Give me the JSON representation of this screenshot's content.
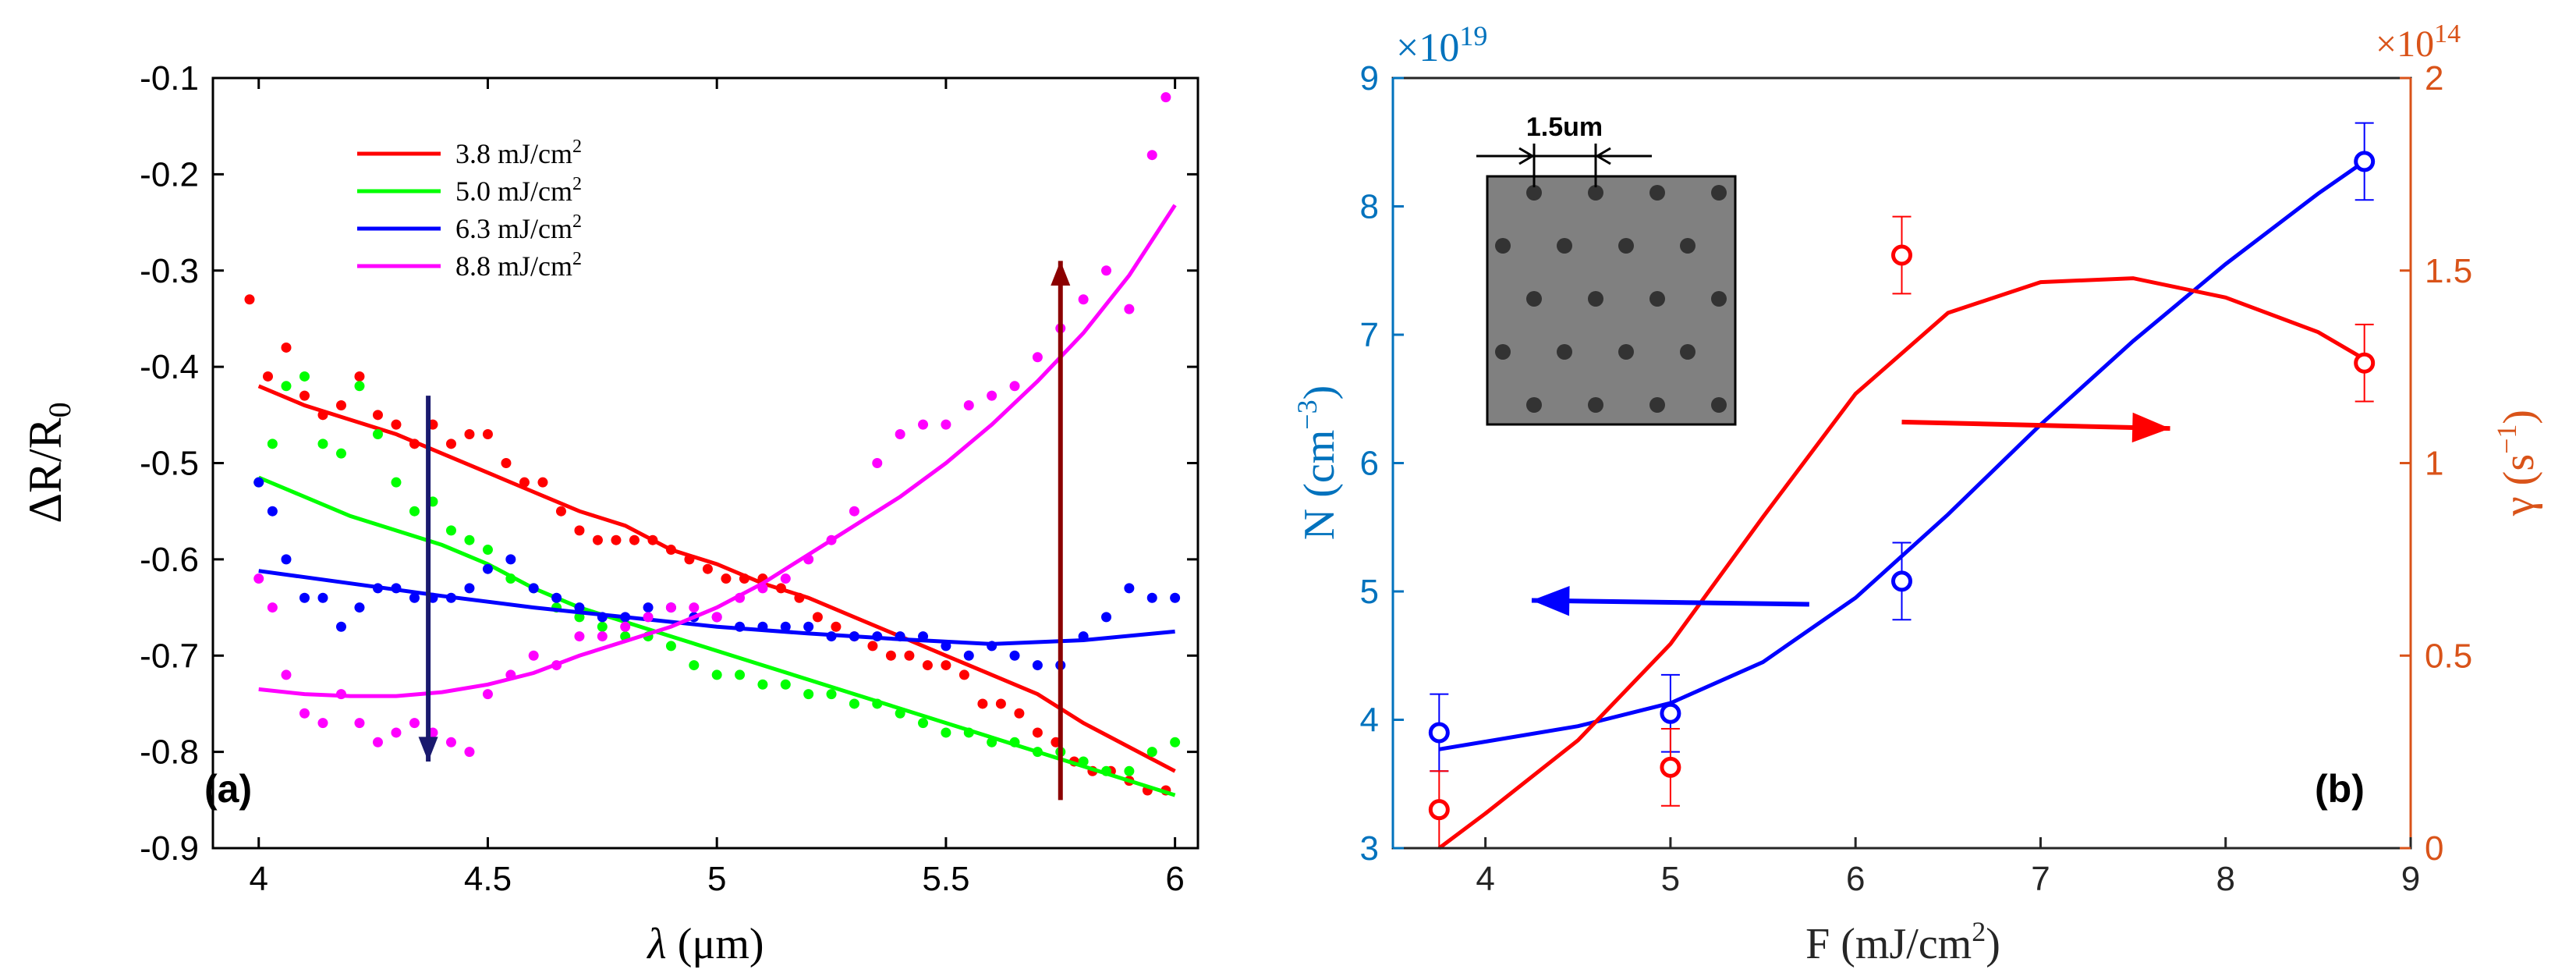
{
  "chart_data": [
    {
      "panel_label": "(a)",
      "type": "line",
      "xlabel_symbol": "λ",
      "xlabel_unit": "(μm)",
      "ylabel_base": "ΔR/R",
      "ylabel_sub": "0",
      "xlim": [
        3.9,
        6.05
      ],
      "ylim": [
        -0.9,
        -0.1
      ],
      "xticks": [
        4,
        4.5,
        5,
        5.5,
        6
      ],
      "xtick_labels": [
        "4",
        "4.5",
        "5",
        "5.5",
        "6"
      ],
      "yticks": [
        -0.9,
        -0.8,
        -0.7,
        -0.6,
        -0.5,
        -0.4,
        -0.3,
        -0.2,
        -0.1
      ],
      "ytick_labels": [
        "-0.9",
        "-0.8",
        "-0.7",
        "-0.6",
        "-0.5",
        "-0.4",
        "-0.3",
        "-0.2",
        "-0.1"
      ],
      "legend_position": "top-left",
      "series": [
        {
          "name": "3.8 mJ/cm",
          "name_sup": "2",
          "color": "#ff0000",
          "fit_x": [
            4.0,
            4.1,
            4.2,
            4.3,
            4.4,
            4.5,
            4.6,
            4.7,
            4.8,
            4.9,
            5.0,
            5.1,
            5.2,
            5.3,
            5.4,
            5.5,
            5.6,
            5.7,
            5.8,
            5.9,
            6.0
          ],
          "fit_y": [
            -0.42,
            -0.44,
            -0.455,
            -0.47,
            -0.49,
            -0.51,
            -0.53,
            -0.55,
            -0.565,
            -0.59,
            -0.605,
            -0.625,
            -0.64,
            -0.66,
            -0.68,
            -0.7,
            -0.72,
            -0.74,
            -0.77,
            -0.795,
            -0.82
          ],
          "points_x": [
            3.98,
            4.02,
            4.06,
            4.1,
            4.14,
            4.18,
            4.22,
            4.26,
            4.3,
            4.34,
            4.38,
            4.42,
            4.46,
            4.5,
            4.54,
            4.58,
            4.62,
            4.66,
            4.7,
            4.74,
            4.78,
            4.82,
            4.86,
            4.9,
            4.94,
            4.98,
            5.02,
            5.06,
            5.1,
            5.14,
            5.18,
            5.22,
            5.26,
            5.3,
            5.34,
            5.38,
            5.42,
            5.46,
            5.5,
            5.54,
            5.58,
            5.62,
            5.66,
            5.7,
            5.74,
            5.78,
            5.82,
            5.86,
            5.9,
            5.94,
            5.98
          ],
          "points_y": [
            -0.33,
            -0.41,
            -0.38,
            -0.43,
            -0.45,
            -0.44,
            -0.41,
            -0.45,
            -0.46,
            -0.48,
            -0.46,
            -0.48,
            -0.47,
            -0.47,
            -0.5,
            -0.52,
            -0.52,
            -0.55,
            -0.57,
            -0.58,
            -0.58,
            -0.58,
            -0.58,
            -0.59,
            -0.6,
            -0.61,
            -0.62,
            -0.62,
            -0.62,
            -0.63,
            -0.64,
            -0.66,
            -0.67,
            -0.68,
            -0.69,
            -0.7,
            -0.7,
            -0.71,
            -0.71,
            -0.72,
            -0.75,
            -0.75,
            -0.76,
            -0.78,
            -0.79,
            -0.81,
            -0.82,
            -0.82,
            -0.83,
            -0.84,
            -0.84
          ]
        },
        {
          "name": "5.0 mJ/cm",
          "name_sup": "2",
          "color": "#00ff00",
          "fit_x": [
            4.0,
            4.1,
            4.2,
            4.3,
            4.4,
            4.5,
            4.6,
            4.7,
            4.8,
            4.9,
            5.0,
            5.1,
            5.2,
            5.3,
            5.4,
            5.5,
            5.6,
            5.7,
            5.8,
            5.9,
            6.0
          ],
          "fit_y": [
            -0.515,
            -0.535,
            -0.555,
            -0.57,
            -0.585,
            -0.605,
            -0.63,
            -0.65,
            -0.665,
            -0.68,
            -0.695,
            -0.71,
            -0.725,
            -0.74,
            -0.755,
            -0.77,
            -0.785,
            -0.8,
            -0.815,
            -0.83,
            -0.845
          ],
          "points_x": [
            4.0,
            4.03,
            4.06,
            4.1,
            4.14,
            4.18,
            4.22,
            4.26,
            4.3,
            4.34,
            4.38,
            4.42,
            4.46,
            4.5,
            4.55,
            4.6,
            4.65,
            4.7,
            4.75,
            4.8,
            4.85,
            4.9,
            4.95,
            5.0,
            5.05,
            5.1,
            5.15,
            5.2,
            5.25,
            5.3,
            5.35,
            5.4,
            5.45,
            5.5,
            5.55,
            5.6,
            5.65,
            5.7,
            5.75,
            5.8,
            5.85,
            5.9,
            5.95,
            6.0
          ],
          "points_y": [
            -0.52,
            -0.48,
            -0.42,
            -0.41,
            -0.48,
            -0.49,
            -0.42,
            -0.47,
            -0.52,
            -0.55,
            -0.54,
            -0.57,
            -0.58,
            -0.59,
            -0.62,
            -0.63,
            -0.65,
            -0.66,
            -0.67,
            -0.68,
            -0.68,
            -0.69,
            -0.71,
            -0.72,
            -0.72,
            -0.73,
            -0.73,
            -0.74,
            -0.74,
            -0.75,
            -0.75,
            -0.76,
            -0.77,
            -0.78,
            -0.78,
            -0.79,
            -0.79,
            -0.8,
            -0.8,
            -0.81,
            -0.82,
            -0.82,
            -0.8,
            -0.79
          ]
        },
        {
          "name": "6.3 mJ/cm",
          "name_sup": "2",
          "color": "#0000ff",
          "fit_x": [
            4.0,
            4.2,
            4.4,
            4.6,
            4.8,
            5.0,
            5.2,
            5.4,
            5.6,
            5.8,
            6.0
          ],
          "fit_y": [
            -0.612,
            -0.625,
            -0.638,
            -0.65,
            -0.66,
            -0.67,
            -0.677,
            -0.683,
            -0.688,
            -0.684,
            -0.675
          ],
          "points_x": [
            4.0,
            4.03,
            4.06,
            4.1,
            4.14,
            4.18,
            4.22,
            4.26,
            4.3,
            4.34,
            4.38,
            4.42,
            4.46,
            4.5,
            4.55,
            4.6,
            4.65,
            4.7,
            4.75,
            4.8,
            4.85,
            4.9,
            4.95,
            5.0,
            5.05,
            5.1,
            5.15,
            5.2,
            5.25,
            5.3,
            5.35,
            5.4,
            5.45,
            5.5,
            5.55,
            5.6,
            5.65,
            5.7,
            5.75,
            5.8,
            5.85,
            5.9,
            5.95,
            6.0
          ],
          "points_y": [
            -0.52,
            -0.55,
            -0.6,
            -0.64,
            -0.64,
            -0.67,
            -0.65,
            -0.63,
            -0.63,
            -0.64,
            -0.64,
            -0.64,
            -0.63,
            -0.61,
            -0.6,
            -0.63,
            -0.64,
            -0.65,
            -0.66,
            -0.66,
            -0.65,
            -0.65,
            -0.66,
            -0.66,
            -0.67,
            -0.67,
            -0.67,
            -0.67,
            -0.68,
            -0.68,
            -0.68,
            -0.68,
            -0.68,
            -0.69,
            -0.7,
            -0.69,
            -0.7,
            -0.71,
            -0.71,
            -0.68,
            -0.66,
            -0.63,
            -0.64,
            -0.64
          ]
        },
        {
          "name": "8.8 mJ/cm",
          "name_sup": "2",
          "color": "#ff00ff",
          "fit_x": [
            4.0,
            4.1,
            4.2,
            4.3,
            4.4,
            4.5,
            4.6,
            4.7,
            4.8,
            4.9,
            5.0,
            5.1,
            5.2,
            5.3,
            5.4,
            5.5,
            5.6,
            5.7,
            5.8,
            5.9,
            6.0
          ],
          "fit_y": [
            -0.735,
            -0.74,
            -0.742,
            -0.742,
            -0.738,
            -0.73,
            -0.718,
            -0.7,
            -0.685,
            -0.67,
            -0.65,
            -0.625,
            -0.595,
            -0.565,
            -0.535,
            -0.5,
            -0.46,
            -0.415,
            -0.365,
            -0.305,
            -0.232
          ],
          "points_x": [
            4.0,
            4.03,
            4.06,
            4.1,
            4.14,
            4.18,
            4.22,
            4.26,
            4.3,
            4.34,
            4.38,
            4.42,
            4.46,
            4.5,
            4.55,
            4.6,
            4.65,
            4.7,
            4.75,
            4.8,
            4.85,
            4.9,
            4.95,
            5.0,
            5.05,
            5.1,
            5.15,
            5.2,
            5.25,
            5.3,
            5.35,
            5.4,
            5.45,
            5.5,
            5.55,
            5.6,
            5.65,
            5.7,
            5.75,
            5.8,
            5.85,
            5.9,
            5.95,
            5.98
          ],
          "points_y": [
            -0.62,
            -0.65,
            -0.72,
            -0.76,
            -0.77,
            -0.74,
            -0.77,
            -0.79,
            -0.78,
            -0.77,
            -0.78,
            -0.79,
            -0.8,
            -0.74,
            -0.72,
            -0.7,
            -0.71,
            -0.68,
            -0.68,
            -0.67,
            -0.66,
            -0.65,
            -0.65,
            -0.66,
            -0.64,
            -0.63,
            -0.62,
            -0.6,
            -0.58,
            -0.55,
            -0.5,
            -0.47,
            -0.46,
            -0.46,
            -0.44,
            -0.43,
            -0.42,
            -0.39,
            -0.36,
            -0.33,
            -0.3,
            -0.34,
            -0.18,
            -0.12
          ]
        }
      ],
      "annotations": [
        {
          "kind": "arrow",
          "color": "#1a1a6e",
          "from": [
            4.37,
            -0.43
          ],
          "to": [
            4.37,
            -0.81
          ],
          "meaning": "down"
        },
        {
          "kind": "arrow",
          "color": "#8b0000",
          "from": [
            5.75,
            -0.85
          ],
          "to": [
            5.75,
            -0.29
          ],
          "meaning": "up"
        }
      ]
    },
    {
      "panel_label": "(b)",
      "type": "scatter",
      "xlabel_base": "F (mJ/cm",
      "xlabel_sup": "2",
      "xlabel_end": ")",
      "ylabel_left_base": "N (cm",
      "ylabel_left_sup": "−3",
      "ylabel_left_end": ")",
      "ylabel_right_base": "γ (s",
      "ylabel_right_sup": "−1",
      "ylabel_right_end": ")",
      "left_multiplier_base": "×10",
      "left_multiplier_exp": "19",
      "right_multiplier_base": "×10",
      "right_multiplier_exp": "14",
      "xlim": [
        3.5,
        9
      ],
      "ylim_left": [
        3,
        9
      ],
      "ylim_right": [
        0,
        2
      ],
      "xticks": [
        4,
        5,
        6,
        7,
        8,
        9
      ],
      "xtick_labels": [
        "4",
        "5",
        "6",
        "7",
        "8",
        "9"
      ],
      "yticks_left": [
        3,
        4,
        5,
        6,
        7,
        8,
        9
      ],
      "ytick_labels_left": [
        "3",
        "4",
        "5",
        "6",
        "7",
        "8",
        "9"
      ],
      "yticks_right": [
        0,
        0.5,
        1,
        1.5,
        2
      ],
      "ytick_labels_right": [
        "0",
        "0.5",
        "1",
        "1.5",
        "2"
      ],
      "colors": {
        "left_axis": "#0072bd",
        "right_axis": "#d95319",
        "n_series": "#0000ff",
        "gamma_series": "#ff0000"
      },
      "series": [
        {
          "axis": "left",
          "color": "#0000ff",
          "x": [
            3.75,
            5.0,
            6.25,
            8.75
          ],
          "y": [
            3.9,
            4.05,
            5.08,
            8.35
          ],
          "err": [
            0.3,
            0.3,
            0.3,
            0.3
          ],
          "fit_x": [
            3.75,
            4.0,
            4.5,
            5.0,
            5.5,
            6.0,
            6.5,
            7.0,
            7.5,
            8.0,
            8.5,
            8.75
          ],
          "fit_y": [
            3.77,
            3.83,
            3.95,
            4.13,
            4.45,
            4.95,
            5.6,
            6.3,
            6.95,
            7.55,
            8.1,
            8.35
          ]
        },
        {
          "axis": "right",
          "color": "#ff0000",
          "x": [
            3.75,
            5.0,
            6.25,
            8.75
          ],
          "y": [
            0.1,
            0.21,
            1.54,
            1.26
          ],
          "err": [
            0.1,
            0.1,
            0.1,
            0.1
          ],
          "fit_x": [
            3.75,
            4.0,
            4.5,
            5.0,
            5.5,
            6.0,
            6.5,
            7.0,
            7.5,
            8.0,
            8.5,
            8.75
          ],
          "fit_y": [
            0.0,
            0.09,
            0.28,
            0.53,
            0.86,
            1.18,
            1.39,
            1.47,
            1.48,
            1.43,
            1.34,
            1.27
          ]
        }
      ],
      "annotations": [
        {
          "kind": "arrow",
          "color": "#0000ff",
          "from": [
            5.75,
            4.9
          ],
          "to": [
            4.25,
            4.93
          ],
          "meaning": "points to left axis"
        },
        {
          "kind": "arrow",
          "color": "#ff0000",
          "from": [
            6.25,
            6.32
          ],
          "to": [
            7.7,
            6.27
          ],
          "meaning": "points to right axis"
        }
      ],
      "inset": {
        "scale_label": "1.5um",
        "rows": 5,
        "cols": 4
      }
    }
  ]
}
